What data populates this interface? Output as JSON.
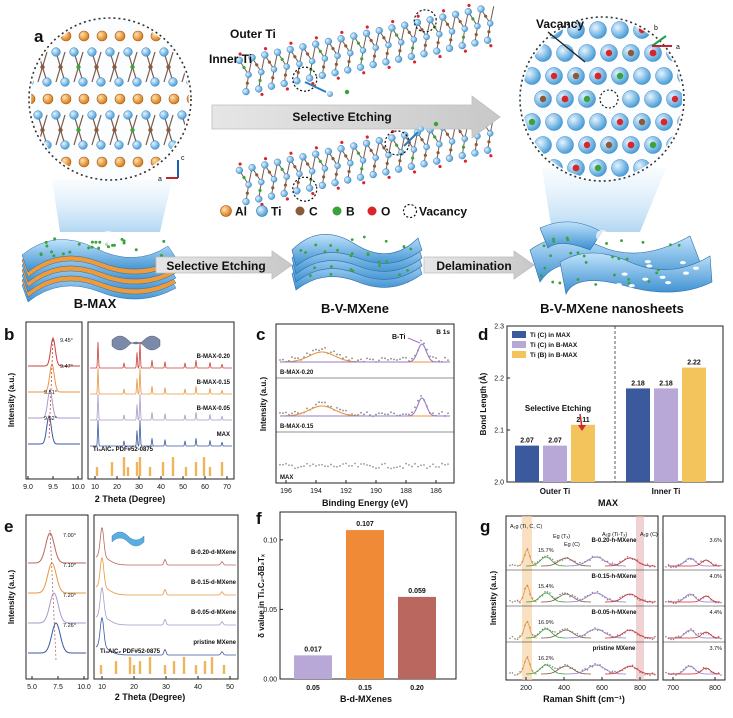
{
  "panels": {
    "a": {
      "letter": "a",
      "labels": {
        "outer_ti": "Outer Ti",
        "inner_ti": "Inner Ti",
        "selective_etching_arrow": "Selective Etching",
        "vacancy_callout": "Vacancy",
        "selective_etching_bottom": "Selective Etching",
        "delamination": "Delamination",
        "b_max": "B-MAX",
        "b_v_mxene": "B-V-MXene",
        "b_v_mxene_nanosheets": "B-V-MXene nanosheets",
        "axis_c": "c",
        "axis_a": "a",
        "axis_b2": "b",
        "axis_a2": "a"
      },
      "legend": [
        {
          "name": "Al",
          "color": "#e8962e"
        },
        {
          "name": "Ti",
          "color": "#6fb6e6"
        },
        {
          "name": "C",
          "color": "#8a5a3a"
        },
        {
          "name": "B",
          "color": "#3aa23a"
        },
        {
          "name": "O",
          "color": "#d9262c"
        },
        {
          "name": "Vacancy",
          "color": "#ffffff"
        }
      ]
    },
    "b": {
      "letter": "b",
      "ylabel": "Intensity (a.u.)",
      "xlabel": "2 Theta (Degree)",
      "left_ticks": [
        "9.0",
        "9.5",
        "10.0"
      ],
      "right_ticks": [
        "10",
        "20",
        "30",
        "40",
        "50",
        "60",
        "70"
      ],
      "peak_labels": [
        "9.45°",
        "9.47°",
        "9.51°",
        "9.52°"
      ],
      "series": [
        "B-MAX-0.20",
        "B-MAX-0.15",
        "B-MAX-0.05",
        "MAX"
      ],
      "reference": "Ti₃AlC₂ PDF#52-0875"
    },
    "c": {
      "letter": "c",
      "ylabel": "Intensity (a.u.)",
      "xlabel": "Binding Energy (eV)",
      "ticks": [
        "196",
        "194",
        "192",
        "190",
        "188",
        "186"
      ],
      "corner": "B 1s",
      "peak": "B-Ti",
      "series": [
        "B-MAX-0.20",
        "B-MAX-0.15",
        "MAX"
      ]
    },
    "d": {
      "letter": "d",
      "ylabel": "Bond Length (Å)",
      "xlabel": "MAX",
      "annotation": "Selective Etching"
    },
    "e": {
      "letter": "e",
      "ylabel": "Intensity (a.u.)",
      "xlabel": "2 Theta (Degree)",
      "left_ticks": [
        "5.0",
        "7.5",
        "10.0"
      ],
      "right_ticks": [
        "10",
        "20",
        "30",
        "40",
        "50"
      ],
      "peak_labels": [
        "7.00°",
        "7.10°",
        "7.20°",
        "7.26°"
      ],
      "series": [
        "B-0.20-d-MXene",
        "B-0.15-d-MXene",
        "B-0.05-d-MXene",
        "pristine MXene"
      ],
      "reference": "Ti₃AlC₂ PDF#52-0875"
    },
    "f": {
      "letter": "f",
      "ylabel": "δ value in Ti₃C₂-δB₂Tₓ",
      "xlabel": "B-d-MXenes"
    },
    "g": {
      "letter": "g",
      "ylabel": "Intensity (a.u.)",
      "xlabel": "Raman Shift (cm⁻¹)",
      "ticks": [
        "200",
        "400",
        "600",
        "800"
      ],
      "ticks_right": [
        "700",
        "800"
      ],
      "mode_labels": [
        "A₁g (Ti, C, C)",
        "Eg (Tₓ)",
        "Eg (C)",
        "A₁g (Ti-Tₓ)",
        "A₁g (C)"
      ],
      "series": [
        "B-0.20-h-MXene",
        "B-0.15-h-MXene",
        "B-0.05-h-MXene",
        "pristine MXene"
      ],
      "pct_left": [
        "15.7%",
        "15.4%",
        "16.9%",
        "16.2%"
      ],
      "pct_right": [
        "3.6%",
        "4.0%",
        "4.4%",
        "3.7%"
      ]
    }
  },
  "chart_data": [
    {
      "type": "bar",
      "panel": "d",
      "categories": [
        "Outer Ti",
        "Inner Ti"
      ],
      "series": [
        {
          "name": "Ti (C) in MAX",
          "values": [
            2.07,
            2.18
          ],
          "color": "#3b5a9e"
        },
        {
          "name": "Ti (C) in B-MAX",
          "values": [
            2.07,
            2.18
          ],
          "color": "#b8a8d8"
        },
        {
          "name": "Ti (B) in B-MAX",
          "values": [
            2.11,
            2.22
          ],
          "color": "#f3c35c"
        }
      ],
      "value_labels": [
        "2.07",
        "2.07",
        "2.11",
        "2.18",
        "2.18",
        "2.22"
      ],
      "ylim": [
        2.0,
        2.3
      ],
      "yticks": [
        "2.0",
        "2.1",
        "2.2",
        "2.3"
      ],
      "legend": "top-left"
    },
    {
      "type": "bar",
      "panel": "f",
      "categories": [
        "0.05",
        "0.15",
        "0.20"
      ],
      "values": [
        0.017,
        0.107,
        0.059
      ],
      "value_labels": [
        "0.017",
        "0.107",
        "0.059"
      ],
      "colors": [
        "#b8a8d8",
        "#f08a36",
        "#b9675f"
      ],
      "ylim": [
        0,
        0.12
      ],
      "yticks": [
        "0.00",
        "0.05",
        "0.10"
      ]
    }
  ]
}
